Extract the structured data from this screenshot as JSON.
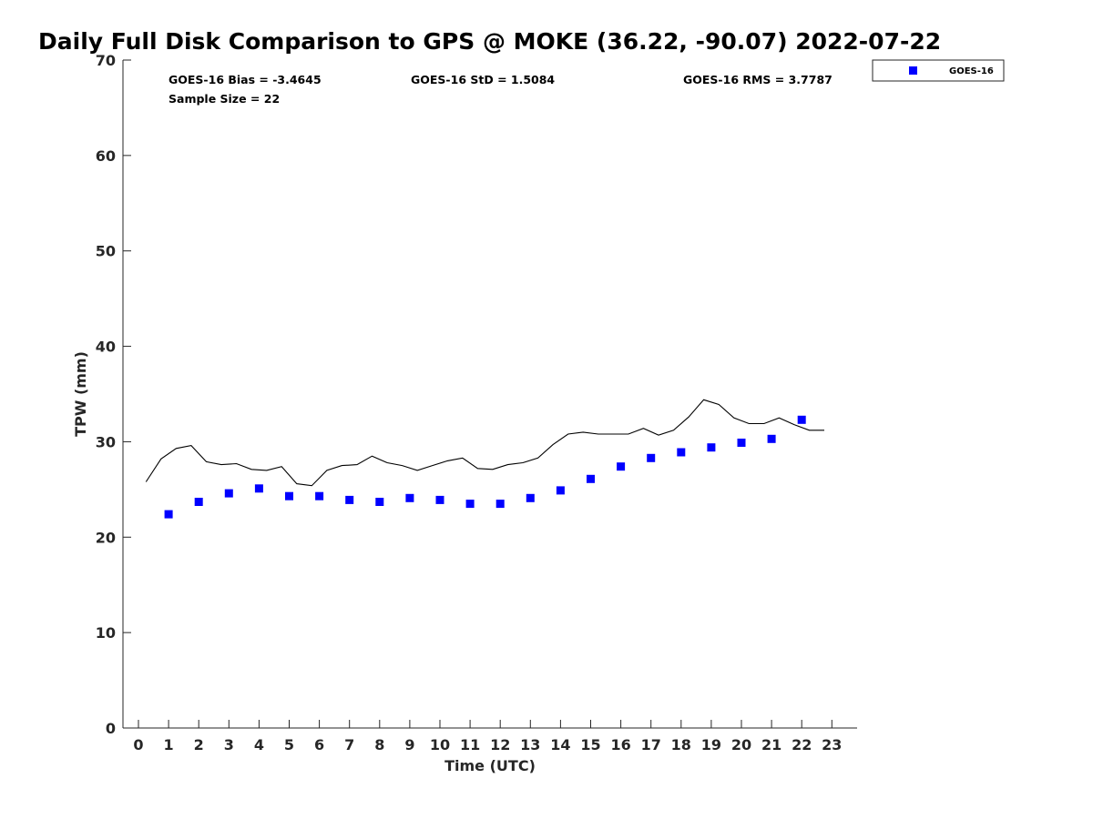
{
  "chart_data": {
    "type": "scatter",
    "title": "Daily Full Disk Comparison to GPS @ MOKE (36.22, -90.07) 2022-07-22",
    "xlabel": "Time (UTC)",
    "ylabel": "TPW (mm)",
    "xlim": [
      -0.5,
      23.75
    ],
    "ylim": [
      0,
      70
    ],
    "xticks": [
      0,
      1,
      2,
      3,
      4,
      5,
      6,
      7,
      8,
      9,
      10,
      11,
      12,
      13,
      14,
      15,
      16,
      17,
      18,
      19,
      20,
      21,
      22,
      23
    ],
    "yticks": [
      0,
      10,
      20,
      30,
      40,
      50,
      60,
      70
    ],
    "grid": false,
    "legend": {
      "placement": "outside-top-right",
      "entries": [
        "GOES-16"
      ]
    },
    "stats": {
      "bias": "GOES-16 Bias = -3.4645",
      "std": "GOES-16 StD = 1.5084",
      "rms": "GOES-16 RMS = 3.7787",
      "sample": "Sample Size = 22"
    },
    "series": [
      {
        "name": "GOES-16",
        "kind": "marker",
        "color": "#0000ff",
        "x": [
          1,
          2,
          3,
          4,
          5,
          6,
          7,
          8,
          9,
          10,
          11,
          12,
          13,
          14,
          15,
          16,
          17,
          18,
          19,
          20,
          21,
          22
        ],
        "y": [
          22.4,
          23.7,
          24.6,
          25.1,
          24.3,
          24.3,
          23.9,
          23.7,
          24.1,
          23.9,
          23.5,
          23.5,
          24.1,
          24.9,
          26.1,
          27.4,
          28.3,
          28.9,
          29.4,
          29.9,
          30.3,
          32.3
        ]
      },
      {
        "kind": "line",
        "color": "#000000",
        "x": [
          0.25,
          0.75,
          1.25,
          1.75,
          2.25,
          2.75,
          3.25,
          3.75,
          4.25,
          4.75,
          5.25,
          5.75,
          6.25,
          6.75,
          7.25,
          7.75,
          8.25,
          8.75,
          9.25,
          9.75,
          10.25,
          10.75,
          11.25,
          11.75,
          12.25,
          12.75,
          13.25,
          13.75,
          14.25,
          14.75,
          15.25,
          15.75,
          16.25,
          16.75,
          17.25,
          17.75,
          18.25,
          18.75,
          19.25,
          19.75,
          20.25,
          20.75,
          21.25,
          21.75,
          22.25,
          22.75
        ],
        "y": [
          25.8,
          28.2,
          29.3,
          29.6,
          27.9,
          27.6,
          27.7,
          27.1,
          27.0,
          27.4,
          25.6,
          25.4,
          27.0,
          27.5,
          27.6,
          28.5,
          27.8,
          27.5,
          27.0,
          27.5,
          28.0,
          28.3,
          27.2,
          27.1,
          27.6,
          27.8,
          28.3,
          29.7,
          30.8,
          31.0,
          30.8,
          30.8,
          30.8,
          31.4,
          30.7,
          31.2,
          32.6,
          34.4,
          33.9,
          32.5,
          31.9,
          31.9,
          32.5,
          31.8,
          31.2,
          31.2
        ]
      }
    ]
  }
}
